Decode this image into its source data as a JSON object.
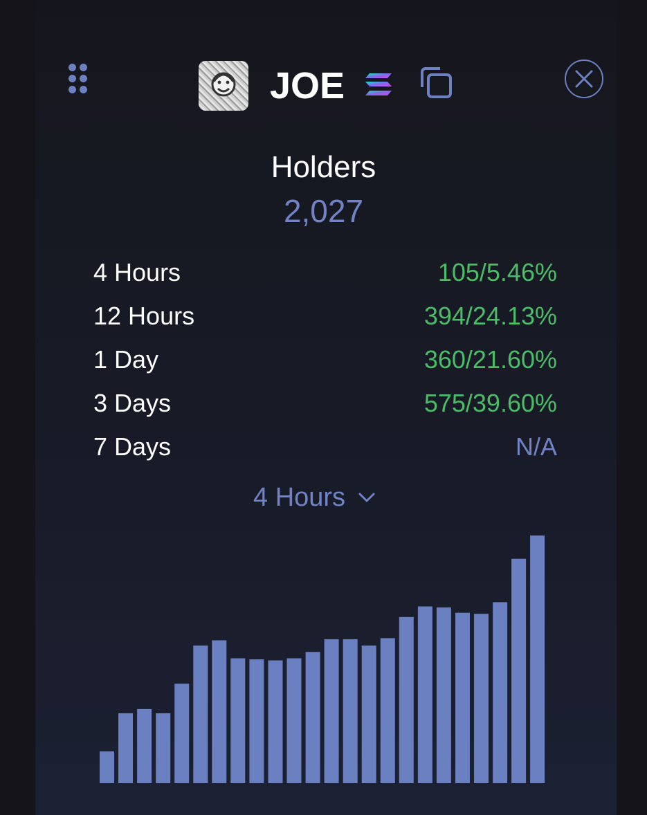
{
  "header": {
    "ticker": "JOE",
    "icons": {
      "grip": "grip-dots-icon",
      "avatar": "token-avatar",
      "chain": "solana-icon",
      "copy": "copy-icon",
      "close": "close-icon"
    }
  },
  "holders": {
    "title": "Holders",
    "count": "2,027"
  },
  "stats": [
    {
      "label": "4 Hours",
      "value": "105/5.46%",
      "status": "up"
    },
    {
      "label": "12 Hours",
      "value": "394/24.13%",
      "status": "up"
    },
    {
      "label": "1 Day",
      "value": "360/21.60%",
      "status": "up"
    },
    {
      "label": "3 Days",
      "value": "575/39.60%",
      "status": "up"
    },
    {
      "label": "7 Days",
      "value": "N/A",
      "status": "na"
    }
  ],
  "period_selector": {
    "selected": "4 Hours"
  },
  "colors": {
    "accent": "#7183c4",
    "positive": "#4cbc68",
    "bar": "#6a80c0",
    "background": "#181b27"
  },
  "chart_data": {
    "type": "bar",
    "values": [
      1880,
      1916,
      1920,
      1916,
      1944,
      1980,
      1985,
      1968,
      1967,
      1966,
      1968,
      1974,
      1986,
      1986,
      1980,
      1987,
      2007,
      2017,
      2016,
      2011,
      2010,
      2021,
      2062,
      2084
    ]
  }
}
